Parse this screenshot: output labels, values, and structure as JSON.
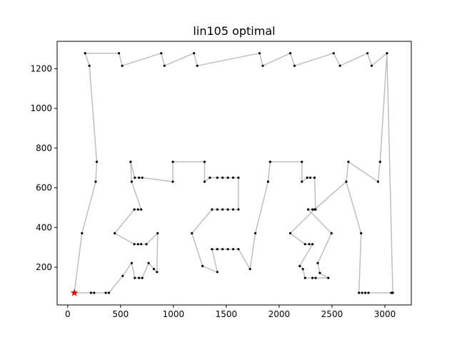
{
  "chart_data": {
    "type": "line",
    "title": "lin105 optimal",
    "xlabel": "",
    "ylabel": "",
    "xlim": [
      -100,
      3250
    ],
    "ylim": [
      10,
      1338
    ],
    "x_ticks": [
      0,
      500,
      1000,
      1500,
      2000,
      2500,
      3000
    ],
    "y_ticks": [
      200,
      400,
      600,
      800,
      1000,
      1200
    ],
    "grid": false,
    "colors": {
      "route": "#bfbfbf",
      "city": "#000000",
      "start": "#ff0000"
    },
    "start": {
      "x": 63,
      "y": 71
    },
    "series": [
      {
        "tour": [
          [
            63,
            71
          ],
          [
            220,
            71
          ],
          [
            250,
            71
          ],
          [
            360,
            71
          ],
          [
            390,
            71
          ],
          [
            520,
            156
          ],
          [
            605,
            221
          ],
          [
            635,
            146
          ],
          [
            675,
            146
          ],
          [
            705,
            146
          ],
          [
            765,
            221
          ],
          [
            815,
            191
          ],
          [
            845,
            176
          ],
          [
            850,
            371
          ],
          [
            745,
            316
          ],
          [
            695,
            316
          ],
          [
            665,
            316
          ],
          [
            630,
            316
          ],
          [
            445,
            371
          ],
          [
            630,
            491
          ],
          [
            665,
            491
          ],
          [
            695,
            491
          ],
          [
            605,
            631
          ],
          [
            595,
            731
          ],
          [
            635,
            651
          ],
          [
            675,
            651
          ],
          [
            705,
            651
          ],
          [
            995,
            631
          ],
          [
            995,
            731
          ],
          [
            1295,
            731
          ],
          [
            1295,
            631
          ],
          [
            1345,
            651
          ],
          [
            1415,
            651
          ],
          [
            1465,
            651
          ],
          [
            1515,
            651
          ],
          [
            1565,
            651
          ],
          [
            1615,
            651
          ],
          [
            1615,
            491
          ],
          [
            1565,
            491
          ],
          [
            1515,
            491
          ],
          [
            1465,
            491
          ],
          [
            1415,
            491
          ],
          [
            1365,
            491
          ],
          [
            1175,
            371
          ],
          [
            1275,
            206
          ],
          [
            1415,
            176
          ],
          [
            1365,
            291
          ],
          [
            1415,
            291
          ],
          [
            1465,
            291
          ],
          [
            1515,
            291
          ],
          [
            1565,
            291
          ],
          [
            1615,
            291
          ],
          [
            1725,
            191
          ],
          [
            1775,
            371
          ],
          [
            1895,
            631
          ],
          [
            1915,
            731
          ],
          [
            2215,
            731
          ],
          [
            2215,
            631
          ],
          [
            2265,
            651
          ],
          [
            2295,
            651
          ],
          [
            2335,
            651
          ],
          [
            2345,
            491
          ],
          [
            2315,
            491
          ],
          [
            2275,
            491
          ],
          [
            2495,
            371
          ],
          [
            2365,
            221
          ],
          [
            2385,
            171
          ],
          [
            2465,
            146
          ],
          [
            2345,
            146
          ],
          [
            2315,
            146
          ],
          [
            2245,
            146
          ],
          [
            2225,
            191
          ],
          [
            2195,
            206
          ],
          [
            2315,
            316
          ],
          [
            2285,
            316
          ],
          [
            2245,
            316
          ],
          [
            2105,
            371
          ],
          [
            2335,
            491
          ],
          [
            2635,
            631
          ],
          [
            2655,
            731
          ],
          [
            2935,
            631
          ],
          [
            2955,
            731
          ],
          [
            3020,
            1278
          ],
          [
            2875,
            1215
          ],
          [
            2835,
            1278
          ],
          [
            2575,
            1215
          ],
          [
            2515,
            1278
          ],
          [
            2145,
            1215
          ],
          [
            2105,
            1278
          ],
          [
            1845,
            1215
          ],
          [
            1815,
            1278
          ],
          [
            1225,
            1215
          ],
          [
            1195,
            1278
          ],
          [
            915,
            1215
          ],
          [
            885,
            1278
          ],
          [
            515,
            1215
          ],
          [
            485,
            1278
          ],
          [
            165,
            1278
          ],
          [
            205,
            1215
          ],
          [
            275,
            731
          ],
          [
            265,
            631
          ],
          [
            135,
            371
          ],
          [
            63,
            71
          ]
        ]
      },
      {
        "tail": [
          [
            63,
            71
          ],
          [
            63,
            71
          ],
          [
            63,
            71
          ],
          [
            63,
            71
          ]
        ]
      },
      {
        "loop": [
          [
            3020,
            1278
          ],
          [
            3075,
            71
          ],
          [
            3060,
            71
          ],
          [
            2845,
            71
          ],
          [
            2815,
            71
          ],
          [
            2785,
            71
          ],
          [
            2755,
            71
          ],
          [
            2775,
            371
          ],
          [
            2635,
            631
          ]
        ]
      }
    ]
  }
}
